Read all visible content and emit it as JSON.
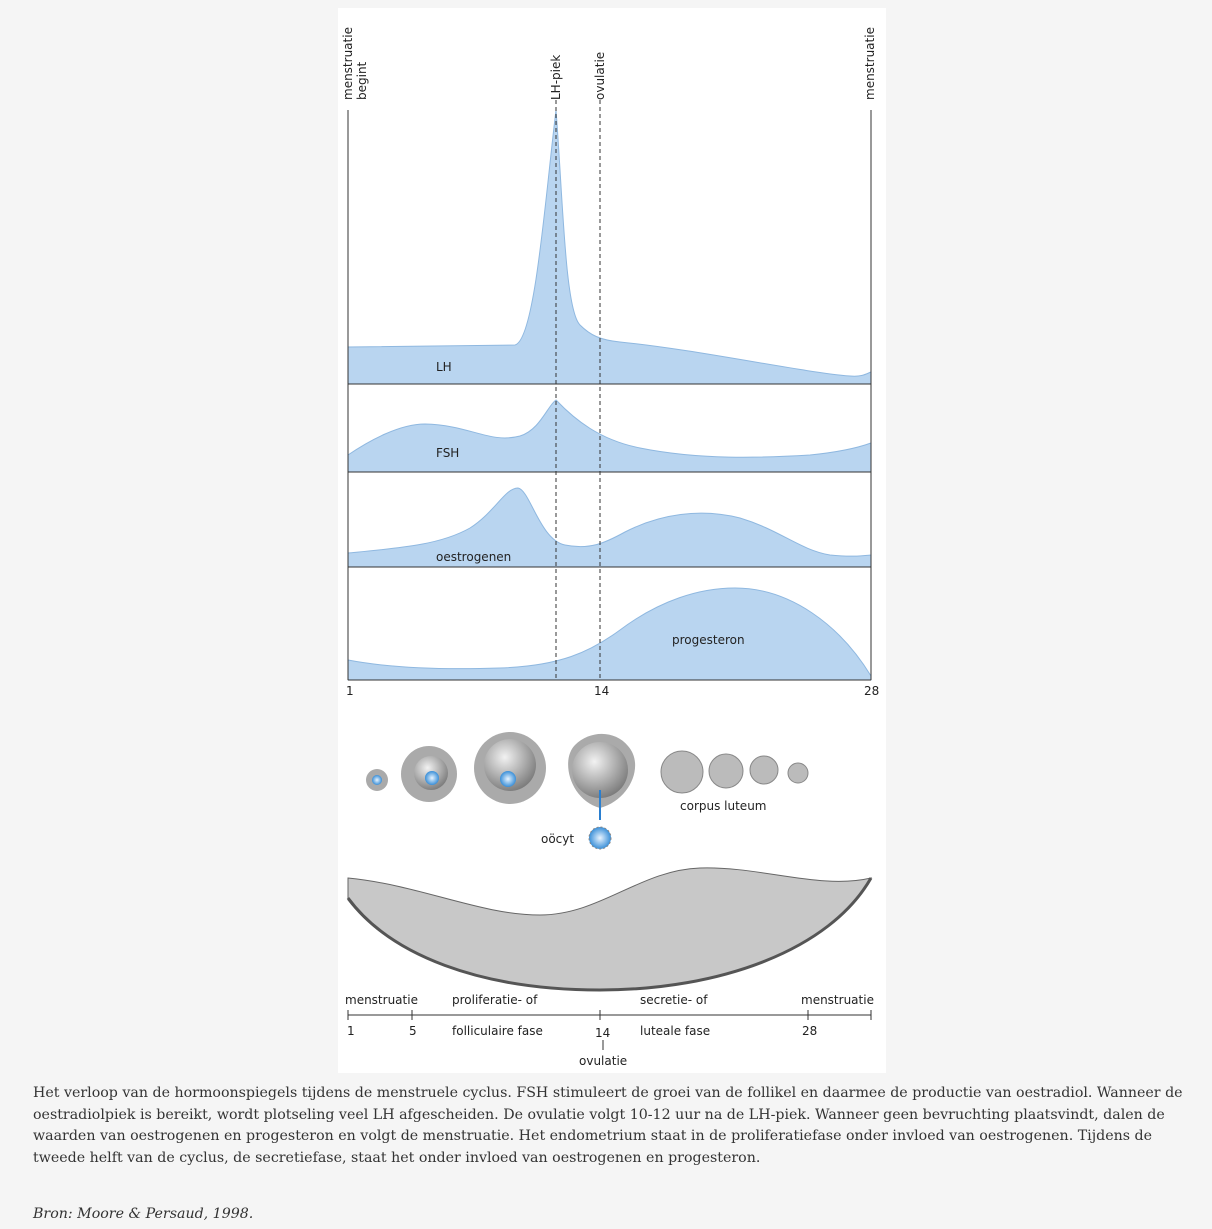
{
  "figure": {
    "top_labels": {
      "start": [
        "menstruatie",
        "begint"
      ],
      "lh_peak": "LH-piek",
      "ovulation": "ovulatie",
      "end": "menstruatie"
    },
    "hormones": [
      "LH",
      "FSH",
      "oestrogenen",
      "progesteron"
    ],
    "axis_labels": [
      1,
      14,
      28
    ],
    "follicle_labels": {
      "oocyte": "oöcyt",
      "corpus_luteum": "corpus luteum"
    },
    "timeline": {
      "phases_top": [
        "menstruatie",
        "proliferatie- of",
        "secretie- of",
        "menstruatie"
      ],
      "phases_bottom": [
        "folliculaire fase",
        "luteale fase"
      ],
      "days": [
        1,
        5,
        14,
        28
      ],
      "ovulation": "ovulatie"
    }
  },
  "caption": "Het verloop van de hormoonspiegels tijdens de menstruele cyclus. FSH stimuleert de groei van de follikel en daarmee de productie van oestradiol. Wanneer de oestradiolpiek is bereikt, wordt plotseling veel LH afgescheiden. De ovulatie volgt 10-12 uur na de LH-piek. Wanneer geen bevruchting plaatsvindt, dalen de waarden van oestrogenen en progesteron en volgt de menstruatie. Het endometrium staat in de proliferatiefase onder invloed van oestrogenen. Tijdens de tweede helft van de cyclus, de secretiefase, staat het onder invloed van oestrogenen en progesteron.",
  "source": "Bron: Moore & Persaud, 1998."
}
